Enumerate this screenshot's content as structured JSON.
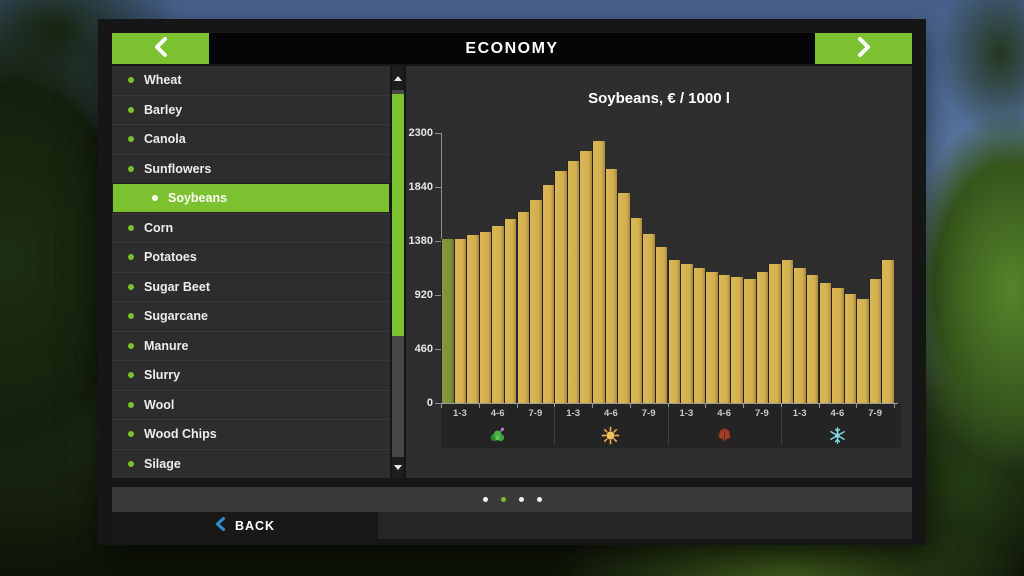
{
  "header": {
    "title": "ECONOMY"
  },
  "sidebar": {
    "items": [
      {
        "label": "Wheat"
      },
      {
        "label": "Barley"
      },
      {
        "label": "Canola"
      },
      {
        "label": "Sunflowers"
      },
      {
        "label": "Soybeans"
      },
      {
        "label": "Corn"
      },
      {
        "label": "Potatoes"
      },
      {
        "label": "Sugar Beet"
      },
      {
        "label": "Sugarcane"
      },
      {
        "label": "Manure"
      },
      {
        "label": "Slurry"
      },
      {
        "label": "Wool"
      },
      {
        "label": "Wood Chips"
      },
      {
        "label": "Silage"
      }
    ],
    "selected_index": 4
  },
  "chart_data": {
    "type": "bar",
    "title": "Soybeans, € / 1000 l",
    "ylabel": "€ / 1000 l",
    "ylim": [
      0,
      2300
    ],
    "yticks": [
      0,
      460,
      920,
      1380,
      1840,
      2300
    ],
    "x_group_labels": [
      "1-3",
      "4-6",
      "7-9",
      "1-3",
      "4-6",
      "7-9",
      "1-3",
      "4-6",
      "7-9",
      "1-3",
      "4-6",
      "7-9"
    ],
    "seasons": [
      "spring",
      "summer",
      "autumn",
      "winter"
    ],
    "values": [
      1400,
      1400,
      1430,
      1460,
      1510,
      1570,
      1630,
      1730,
      1860,
      1980,
      2060,
      2150,
      2230,
      1990,
      1790,
      1575,
      1440,
      1330,
      1215,
      1180,
      1150,
      1115,
      1090,
      1070,
      1055,
      1115,
      1180,
      1215,
      1150,
      1090,
      1020,
      980,
      930,
      890,
      1055,
      1215
    ],
    "highlight_index": 0,
    "bar_color": "#d2ae4e",
    "highlight_color": "#7e9038",
    "grid": false,
    "legend": "none"
  },
  "pagination": {
    "dots": 4,
    "active_index": 1
  },
  "footer": {
    "back_label": "BACK"
  },
  "colors": {
    "accent_green": "#7cc12f",
    "back_chevron_blue": "#2f8fd0",
    "season_spring": "#47b144",
    "season_summer": "#f2b04a",
    "season_autumn": "#9c3f26",
    "season_winter": "#7fd8e8"
  }
}
